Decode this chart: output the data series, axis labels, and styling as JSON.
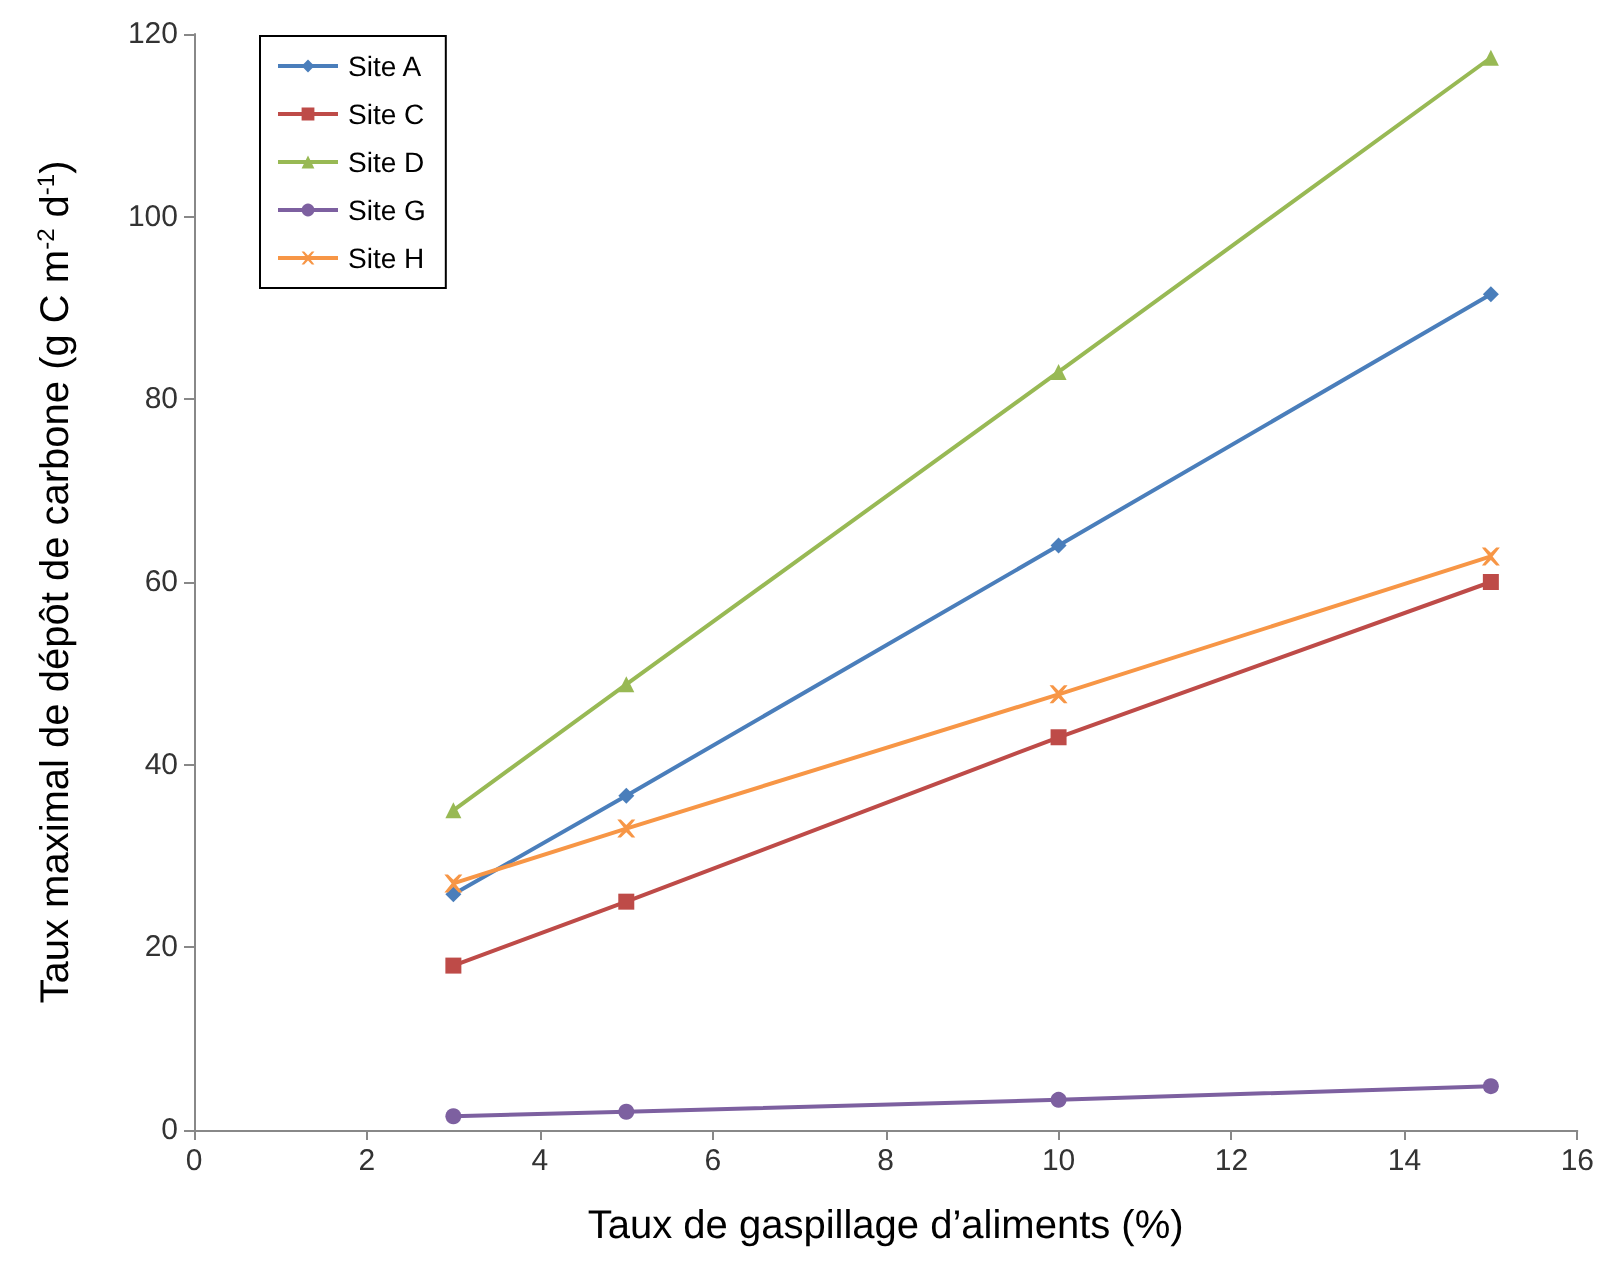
{
  "chart_data": {
    "type": "line",
    "xlabel": "Taux de gaspillage d’aliments (%)",
    "ylabel": "Taux maximal de dépôt de carbone (g C m$^{-2}$ d$^{-1}$)",
    "x": [
      3,
      5,
      10,
      15
    ],
    "series": [
      {
        "name": "Site A",
        "color": "#4a7ebb",
        "marker": "diamond",
        "values": [
          25.8,
          36.6,
          64,
          91.5
        ]
      },
      {
        "name": "Site C",
        "color": "#be4b48",
        "marker": "square",
        "values": [
          18,
          25,
          43,
          60
        ]
      },
      {
        "name": "Site D",
        "color": "#98b954",
        "marker": "triangle",
        "values": [
          35,
          48.8,
          83,
          117.4
        ]
      },
      {
        "name": "Site G",
        "color": "#7d60a0",
        "marker": "circle",
        "values": [
          1.5,
          2,
          3.3,
          4.8
        ]
      },
      {
        "name": "Site H",
        "color": "#f79646",
        "marker": "cross",
        "values": [
          27,
          33,
          47.7,
          62.8
        ]
      }
    ],
    "xlim": [
      0,
      16
    ],
    "xticks": [
      0,
      2,
      4,
      6,
      8,
      10,
      12,
      14,
      16
    ],
    "ylim": [
      0,
      120
    ],
    "yticks": [
      0,
      20,
      40,
      60,
      80,
      100,
      120
    ],
    "grid": false,
    "legend": "top left",
    "line_style": "solid"
  }
}
